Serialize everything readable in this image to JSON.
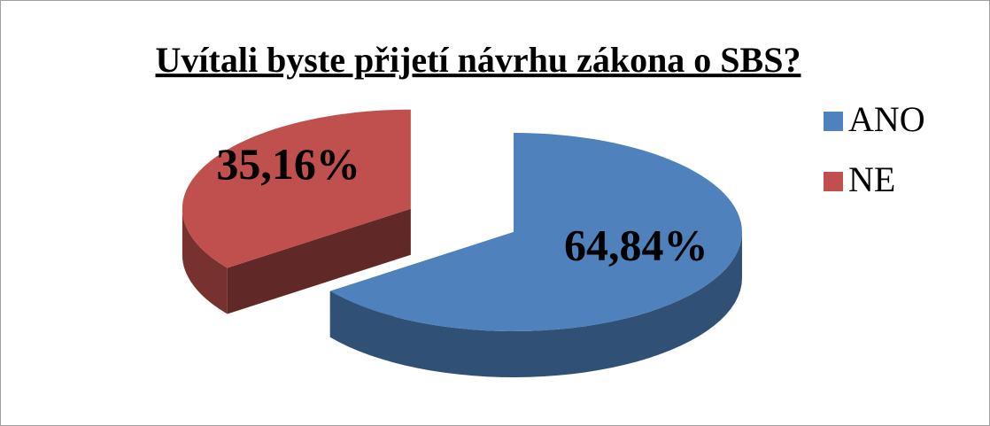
{
  "chart_data": {
    "type": "pie",
    "title": "Uvítali byste přijetí návrhu zákona o SBS?",
    "categories": [
      "ANO",
      "NE"
    ],
    "values": [
      64.84,
      35.16
    ],
    "value_labels": [
      "64,84%",
      "35,16%"
    ],
    "colors": [
      "#4f81bd",
      "#c0504d"
    ],
    "legend": "right"
  }
}
